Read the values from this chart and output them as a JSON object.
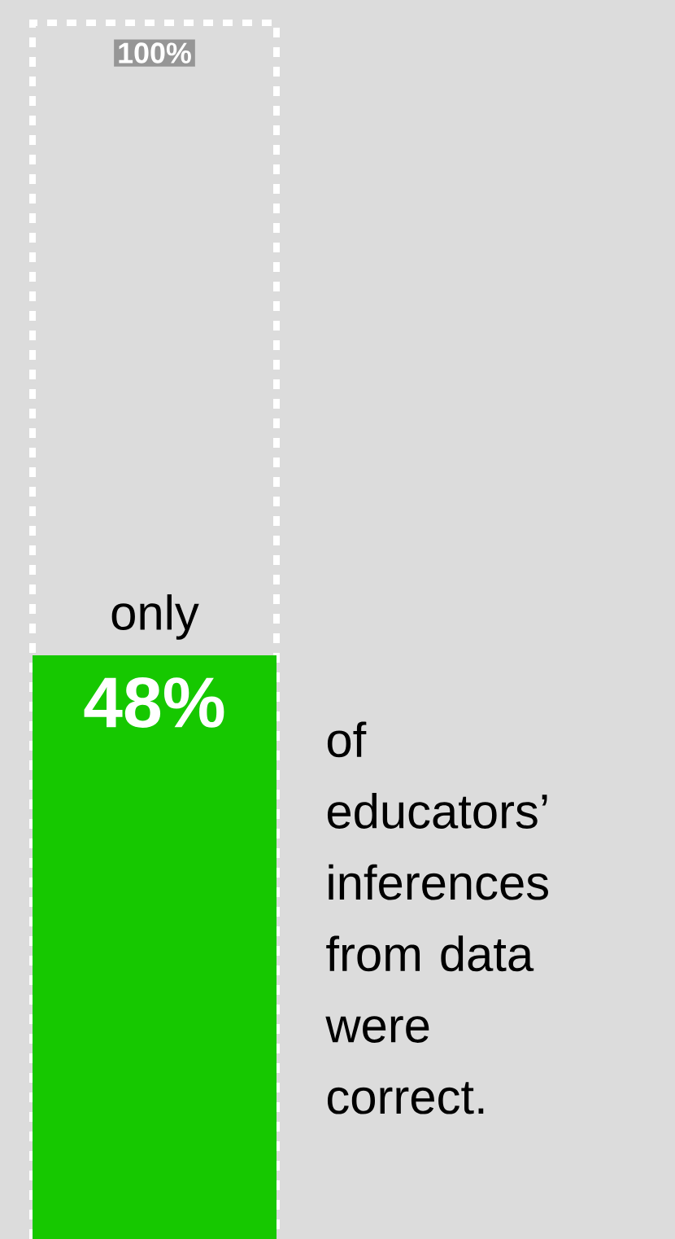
{
  "chart_data": {
    "type": "bar",
    "categories": [
      null
    ],
    "ylim": [
      0,
      100
    ],
    "series": [
      {
        "color": "#16c800",
        "values": [
          48
        ],
        "value_labels": [
          "48%"
        ]
      }
    ],
    "bands": [
      {
        "axis": "y",
        "from": 0,
        "to": 100,
        "label": "100%"
      }
    ],
    "annotations": [
      "only",
      "of educators’ inferences from data were correct."
    ]
  }
}
